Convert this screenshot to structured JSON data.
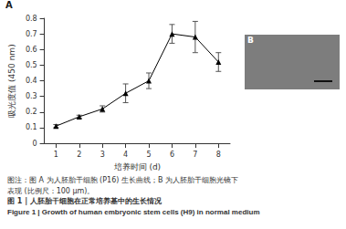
{
  "chart_data": {
    "type": "line",
    "x_label": "培养时间 (d)",
    "y_label": "吸光度值 (450 nm)",
    "categories": [
      "1",
      "2",
      "3",
      "4",
      "5",
      "6",
      "7",
      "8"
    ],
    "values": [
      0.11,
      0.17,
      0.22,
      0.32,
      0.4,
      0.7,
      0.68,
      0.52
    ],
    "errors": [
      0.01,
      0.01,
      0.02,
      0.06,
      0.05,
      0.06,
      0.1,
      0.06
    ],
    "color": "#000000",
    "marker": "triangle",
    "ylim": [
      0,
      0.8
    ],
    "yticks": [
      0,
      0.1,
      0.2,
      0.3,
      0.4,
      0.5,
      0.6,
      0.7,
      0.8
    ],
    "grid": false
  },
  "panel_a_label": "A",
  "panel_b_label": "B",
  "caption_lines": [
    "图注：图 A 为人胚胎干细胞 (P16) 生长曲线；B 为人胚胎干细胞光镜下",
    "表现 (比例尺：100 μm)。"
  ],
  "figure_title_zh": "图 1 | 人胚胎干细胞在正常培养基中的生长情况",
  "figure_title_en": "Figure 1 | Growth of human embryonic stem cells (H9) in normal medium"
}
